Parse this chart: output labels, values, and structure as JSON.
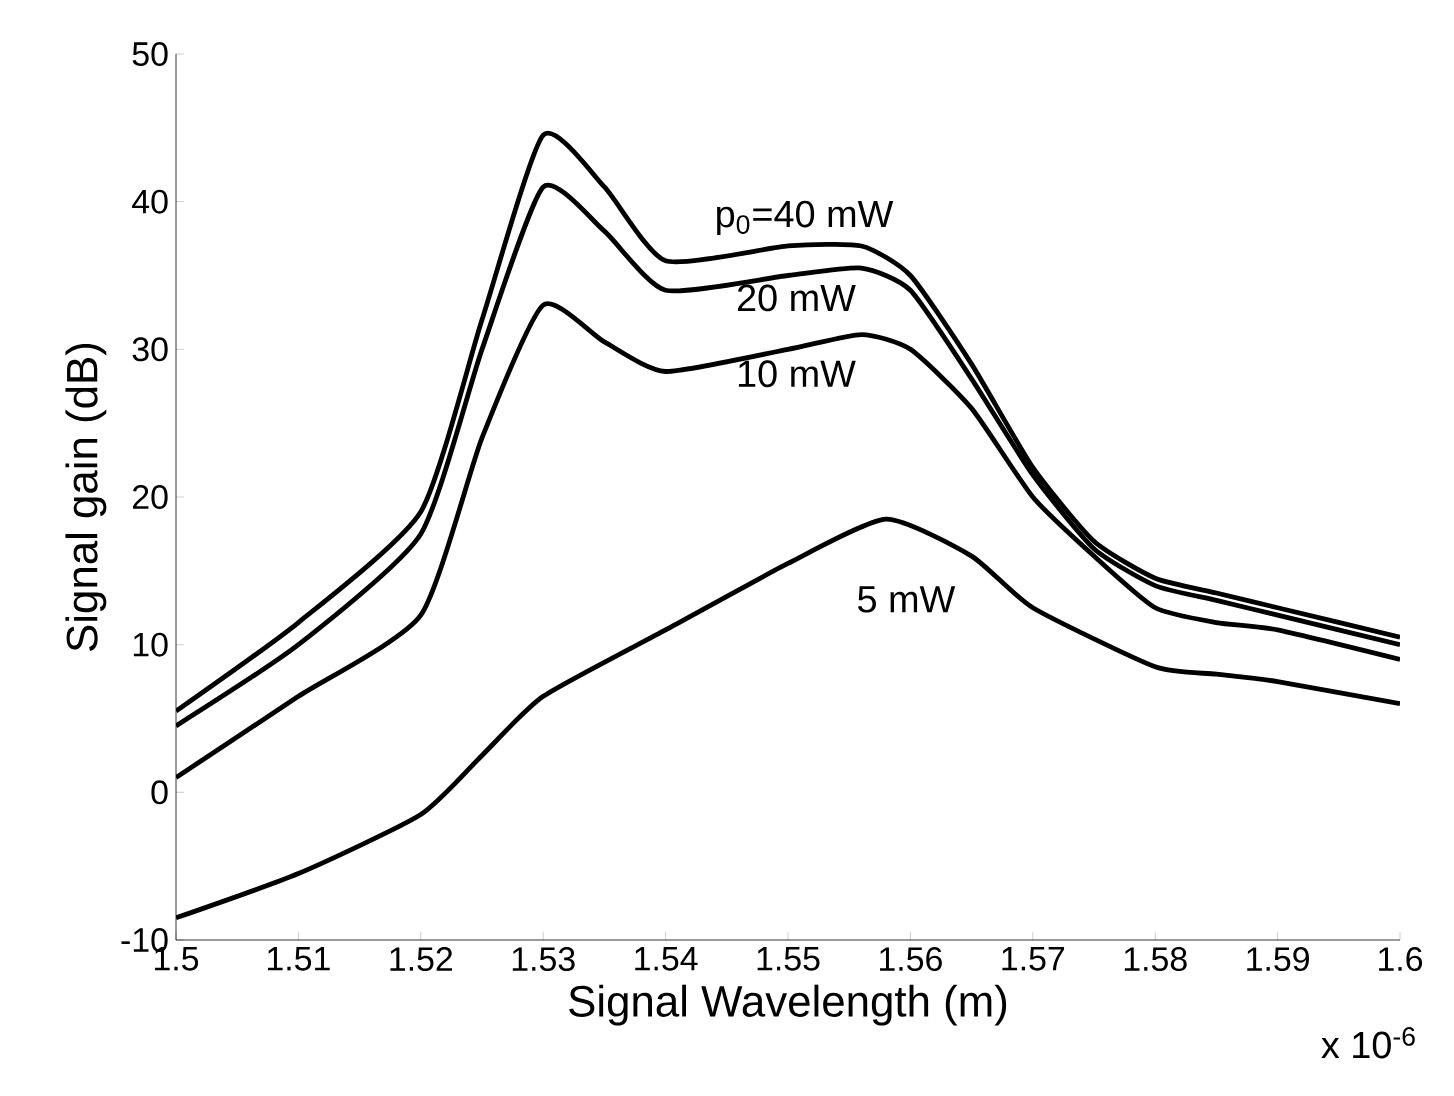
{
  "chart_data": {
    "type": "line",
    "xlabel": "Signal Wavelength (m)",
    "ylabel": "Signal gain (dB)",
    "xlim": [
      1.5,
      1.6
    ],
    "xticks": [
      1.5,
      1.51,
      1.52,
      1.53,
      1.54,
      1.55,
      1.56,
      1.57,
      1.58,
      1.59,
      1.6
    ],
    "ylim": [
      -10,
      50
    ],
    "yticks": [
      -10,
      0,
      10,
      20,
      30,
      40,
      50
    ],
    "annotations": [
      "x 10$^{-6}$"
    ],
    "grid": false,
    "marker": "none",
    "line_style": "solid",
    "series": [
      {
        "name": "p$_{0}$=40 mW",
        "color": "#000000",
        "x": [
          1.5,
          1.51,
          1.52,
          1.525,
          1.53,
          1.535,
          1.54,
          1.55,
          1.556,
          1.56,
          1.565,
          1.57,
          1.575,
          1.58,
          1.585,
          1.59,
          1.6
        ],
        "values": [
          5.5,
          11.5,
          19,
          32,
          44.5,
          41,
          36,
          37,
          37,
          35,
          29,
          22,
          17,
          14.5,
          13.5,
          12.5,
          10.5
        ]
      },
      {
        "name": "20 mW",
        "color": "#000000",
        "x": [
          1.5,
          1.51,
          1.52,
          1.525,
          1.53,
          1.535,
          1.54,
          1.55,
          1.556,
          1.56,
          1.565,
          1.57,
          1.575,
          1.58,
          1.585,
          1.59,
          1.6
        ],
        "values": [
          4.5,
          10,
          17.5,
          30,
          41,
          38,
          34,
          35,
          35.5,
          34,
          28,
          21.5,
          16.5,
          14,
          13,
          12,
          10
        ]
      },
      {
        "name": "10 mW",
        "color": "#000000",
        "x": [
          1.5,
          1.51,
          1.52,
          1.525,
          1.53,
          1.535,
          1.54,
          1.55,
          1.556,
          1.56,
          1.565,
          1.57,
          1.575,
          1.58,
          1.585,
          1.59,
          1.6
        ],
        "values": [
          1,
          6.5,
          12,
          24,
          33,
          30.5,
          28.5,
          30,
          31,
          30,
          26,
          20,
          16,
          12.5,
          11.5,
          11,
          9
        ]
      },
      {
        "name": "5 mW",
        "color": "#000000",
        "x": [
          1.5,
          1.51,
          1.52,
          1.525,
          1.53,
          1.54,
          1.55,
          1.558,
          1.565,
          1.57,
          1.58,
          1.585,
          1.59,
          1.6
        ],
        "values": [
          -8.5,
          -5.5,
          -1.5,
          2.5,
          6.5,
          11,
          15.5,
          18.5,
          16,
          12.5,
          8.5,
          8,
          7.5,
          6
        ]
      }
    ]
  }
}
